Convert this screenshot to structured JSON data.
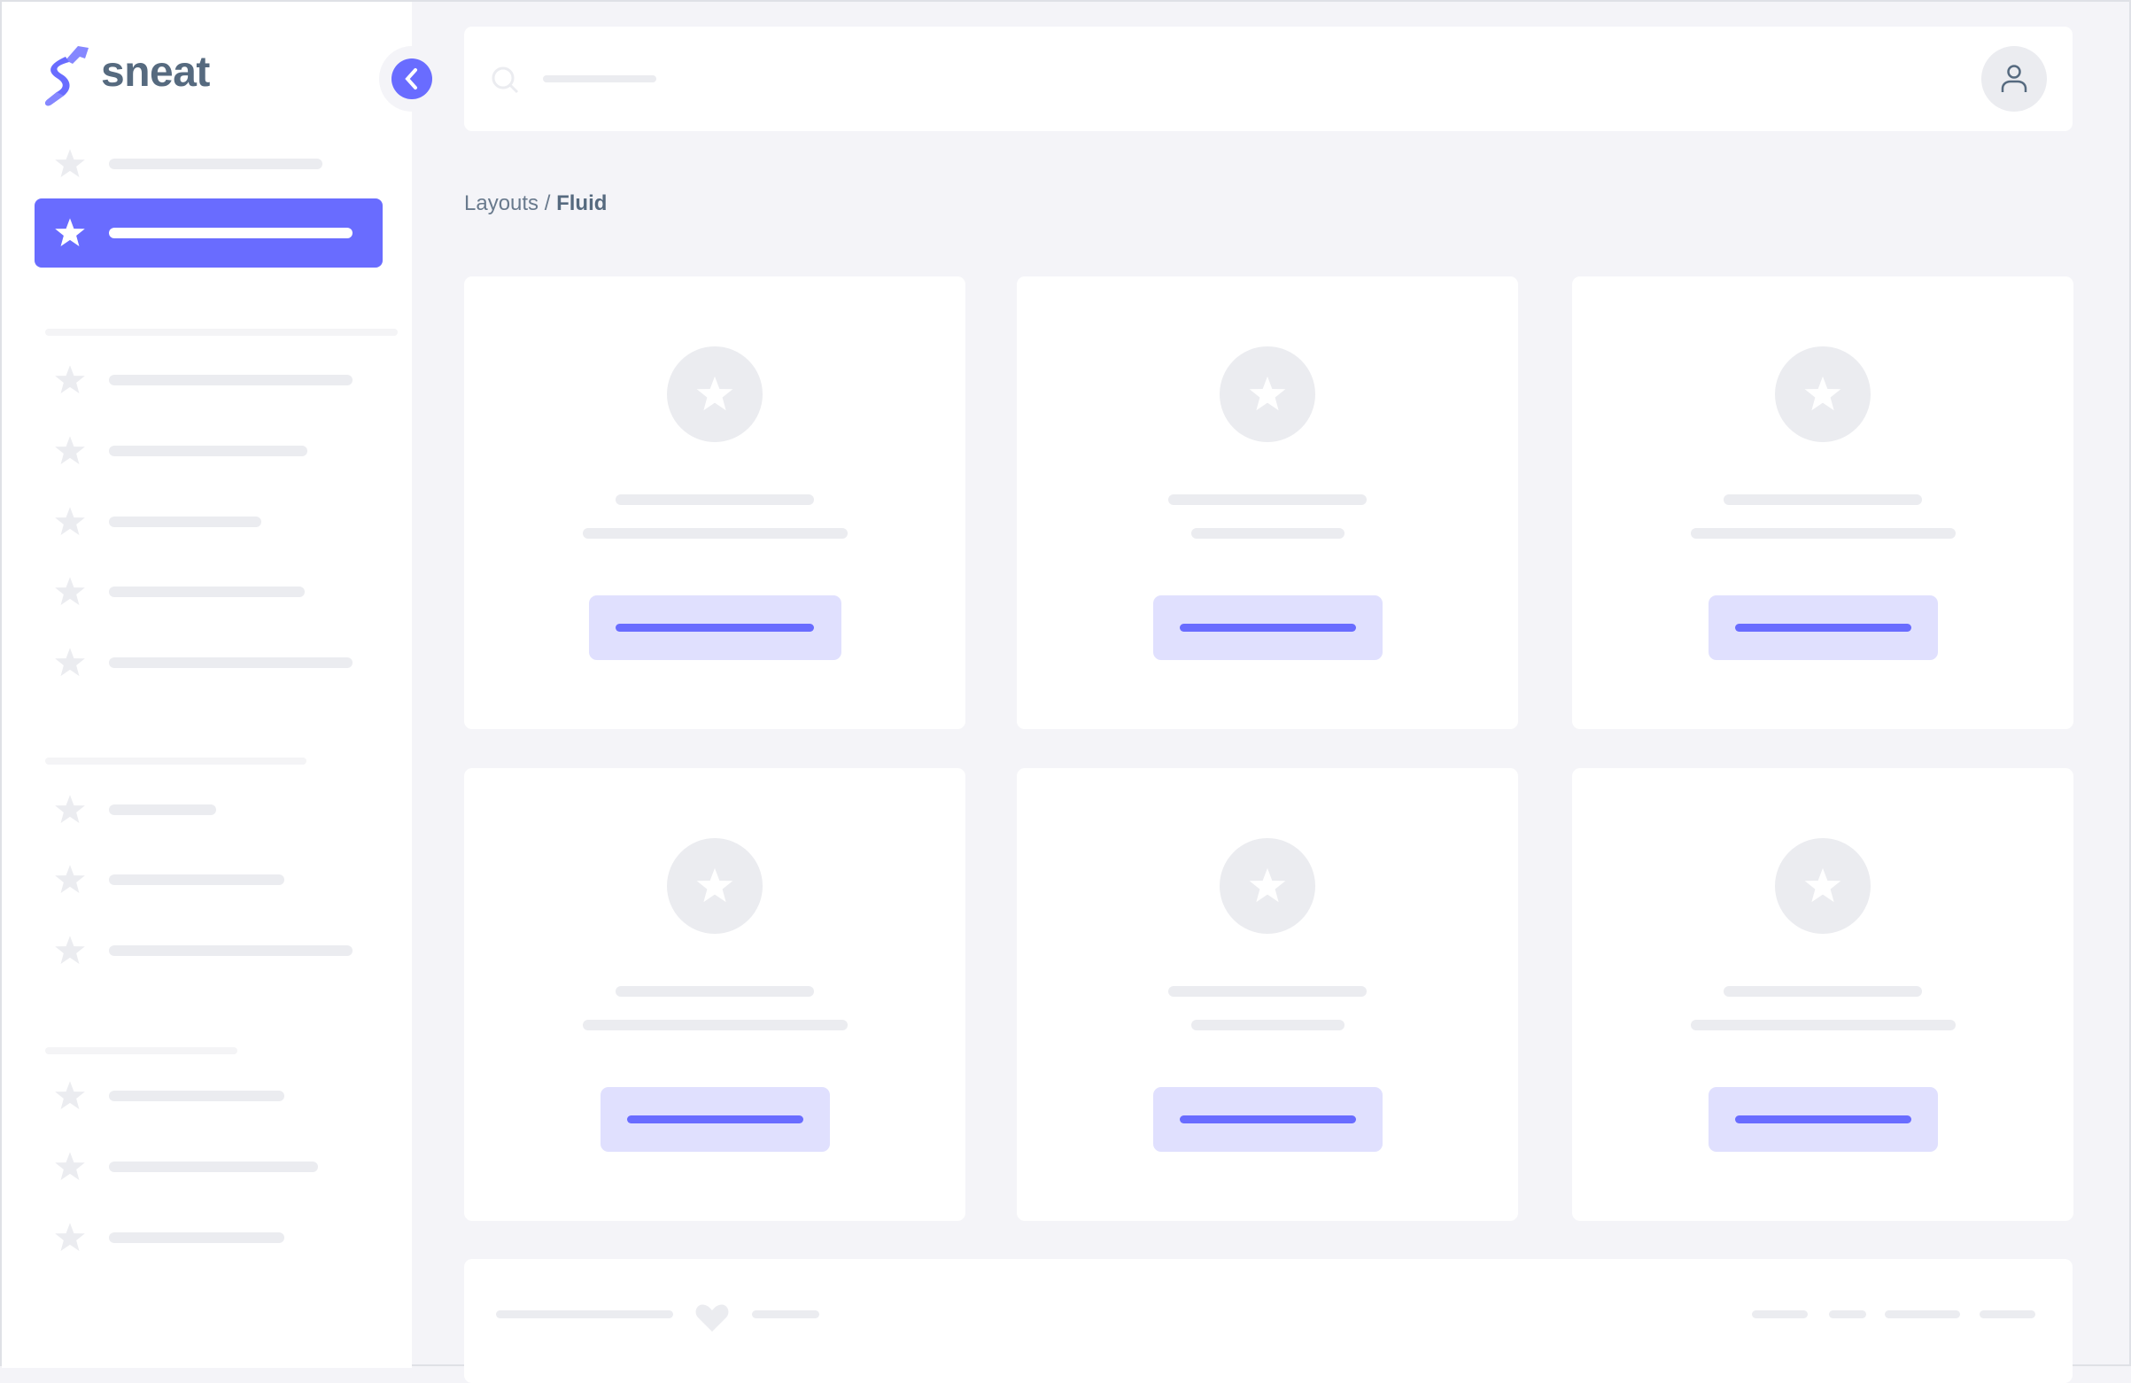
{
  "brand": {
    "name": "sneat",
    "logo_color": "#696cff",
    "text_color": "#566a7f"
  },
  "sidebar": {
    "collapse_icon": "chevron-left-icon",
    "item_icon": "star-icon",
    "active_index": 1,
    "active_color": "#696cff"
  },
  "header": {
    "search_icon": "search-icon",
    "user_icon": "user-icon"
  },
  "breadcrumb": {
    "parent": "Layouts",
    "separator": " / ",
    "current": "Fluid"
  },
  "cards": {
    "count": 6,
    "icon": "star-icon",
    "button_color": "#e0e0fe",
    "button_bar_color": "#696cff"
  },
  "footer": {
    "icon": "heart-icon"
  }
}
